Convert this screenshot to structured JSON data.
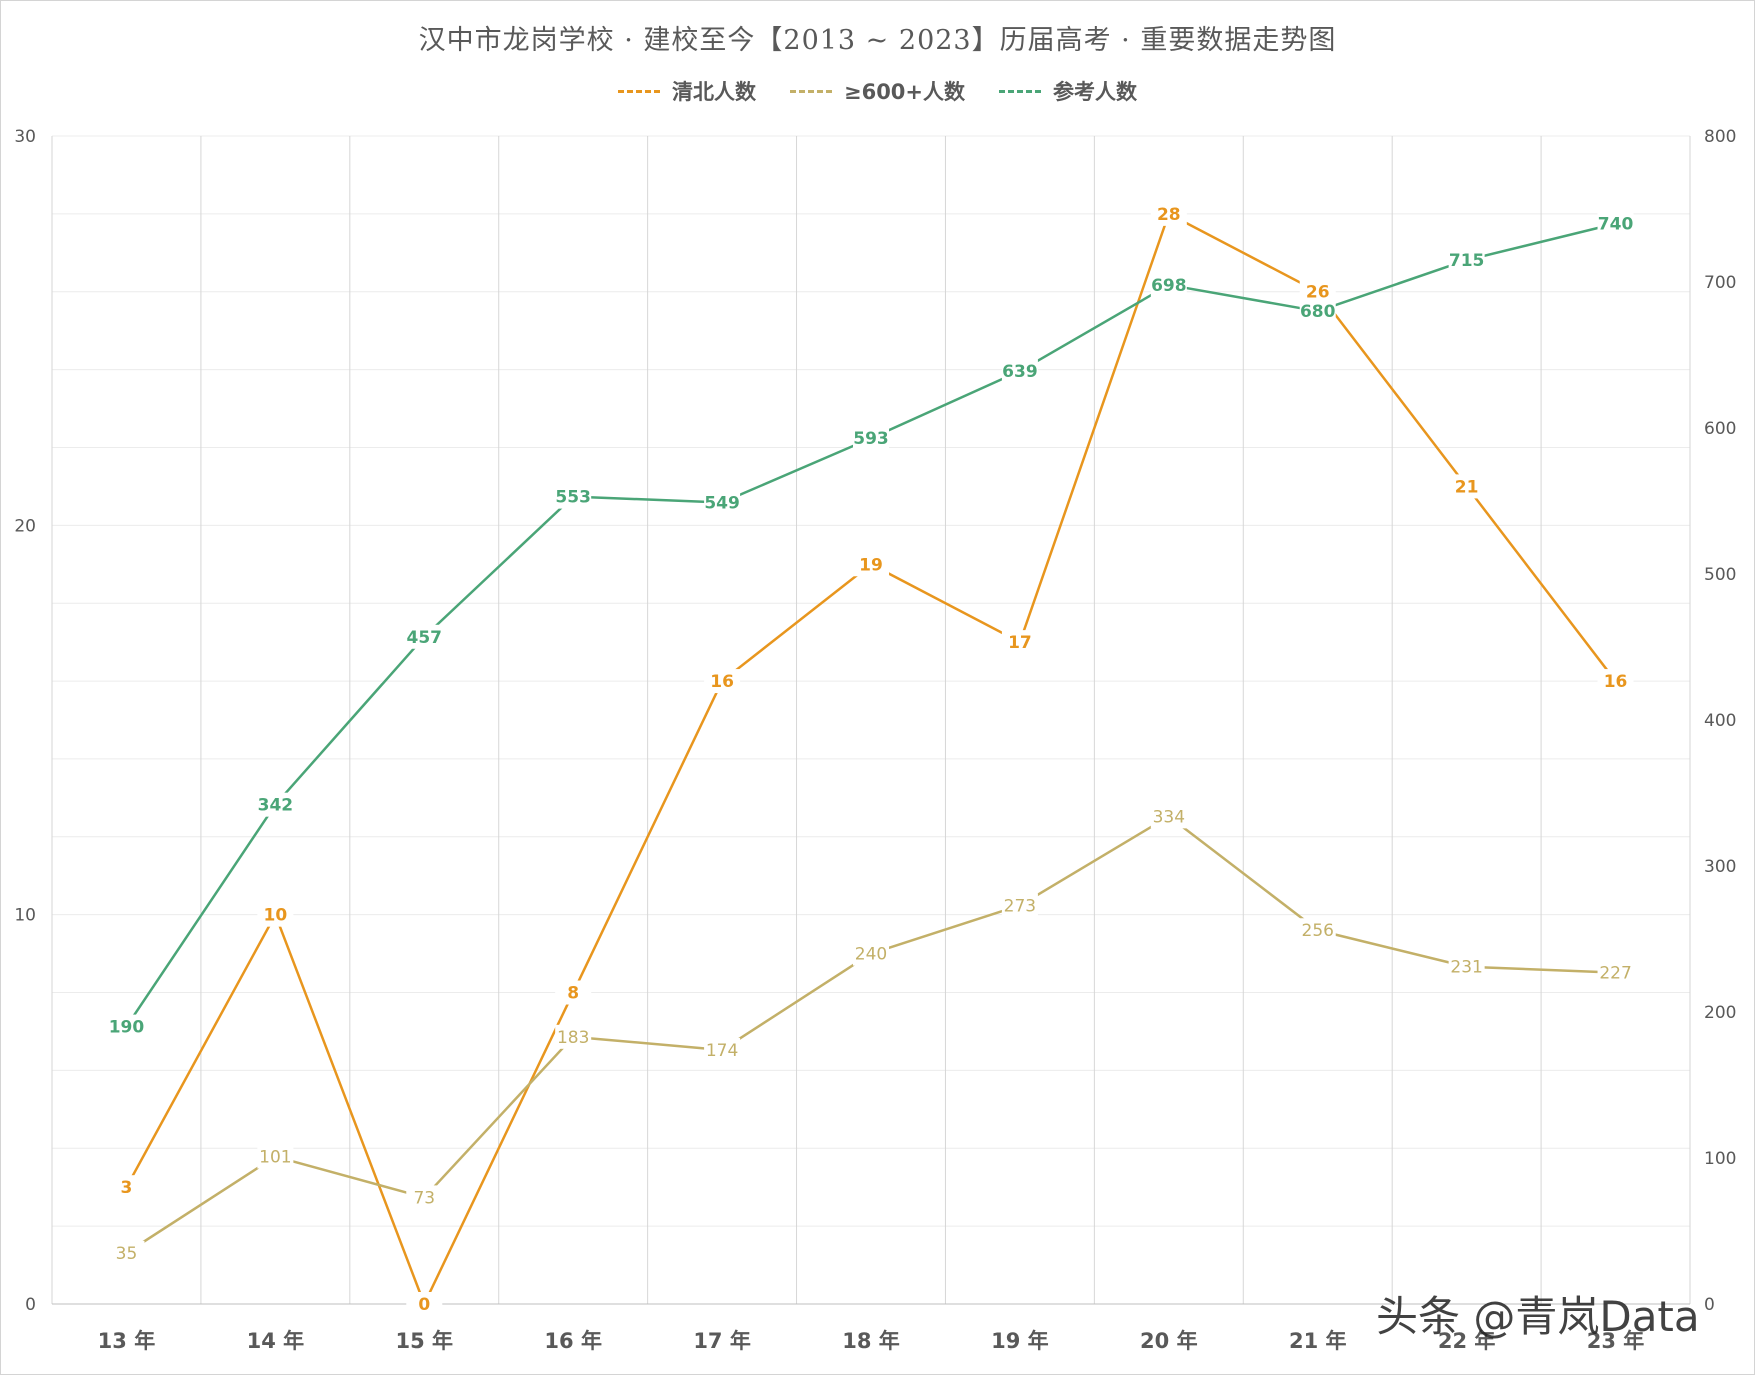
{
  "title": "汉中市龙岗学校 · 建校至今【2013 ~ 2023】历届高考 · 重要数据走势图",
  "watermark": "头条 @青岚Data",
  "chart_data": {
    "type": "line",
    "categories": [
      "13 年",
      "14 年",
      "15 年",
      "16 年",
      "17 年",
      "18 年",
      "19 年",
      "20 年",
      "21 年",
      "22 年",
      "23 年"
    ],
    "y_left": {
      "range": [
        0,
        30
      ],
      "ticks": [
        "0",
        "10",
        "20",
        "30"
      ]
    },
    "y_right": {
      "range": [
        0,
        800
      ],
      "ticks": [
        "0",
        "100",
        "200",
        "300",
        "400",
        "500",
        "600",
        "700",
        "800"
      ]
    },
    "grid": true,
    "legend_position": "top",
    "series": [
      {
        "name": "清北人数",
        "axis": "left",
        "color": "#e8961e",
        "values": [
          3,
          10,
          0,
          8,
          16,
          19,
          17,
          28,
          26,
          21,
          16
        ]
      },
      {
        "name": "≥600+人数",
        "axis": "right",
        "color": "#c3b068",
        "values": [
          35,
          101,
          73,
          183,
          174,
          240,
          273,
          334,
          256,
          231,
          227
        ]
      },
      {
        "name": "参考人数",
        "axis": "right",
        "color": "#4aa577",
        "values": [
          190,
          342,
          457,
          553,
          549,
          593,
          639,
          698,
          680,
          715,
          740
        ]
      }
    ]
  }
}
